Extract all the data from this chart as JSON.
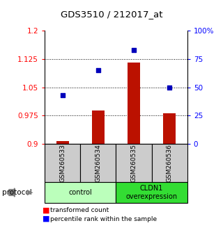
{
  "title": "GDS3510 / 212017_at",
  "samples": [
    "GSM260533",
    "GSM260534",
    "GSM260535",
    "GSM260536"
  ],
  "bar_values": [
    0.908,
    0.988,
    1.115,
    0.982
  ],
  "dot_values_pct": [
    43,
    65,
    83,
    50
  ],
  "ylim_left": [
    0.9,
    1.2
  ],
  "ylim_right": [
    0,
    100
  ],
  "yticks_left": [
    0.9,
    0.975,
    1.05,
    1.125,
    1.2
  ],
  "ytick_labels_left": [
    "0.9",
    "0.975",
    "1.05",
    "1.125",
    "1.2"
  ],
  "yticks_right": [
    0,
    25,
    50,
    75,
    100
  ],
  "ytick_labels_right": [
    "0",
    "25",
    "50",
    "75",
    "100%"
  ],
  "bar_color": "#bb1100",
  "dot_color": "#0000bb",
  "bar_width": 0.35,
  "groups": [
    {
      "label": "control",
      "indices": [
        0,
        1
      ],
      "color": "#bbffbb"
    },
    {
      "label": "CLDN1\noverexpression",
      "indices": [
        2,
        3
      ],
      "color": "#33dd33"
    }
  ],
  "protocol_label": "protocol",
  "legend_bar_label": "transformed count",
  "legend_dot_label": "percentile rank within the sample",
  "sample_box_color": "#cccccc",
  "hgrid_lines": [
    0.975,
    1.05,
    1.125
  ]
}
